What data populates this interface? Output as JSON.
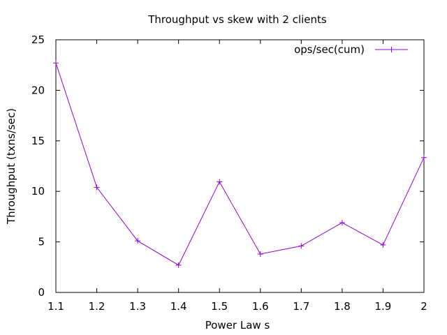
{
  "chart_data": {
    "type": "line",
    "title": "Throughput vs skew with 2 clients",
    "xlabel": "Power Law s",
    "ylabel": "Throughput (txns/sec)",
    "xlim": [
      1.1,
      2
    ],
    "ylim": [
      0,
      25
    ],
    "xticks": [
      "1.1",
      "1.2",
      "1.3",
      "1.4",
      "1.5",
      "1.6",
      "1.7",
      "1.8",
      "1.9",
      "2"
    ],
    "yticks": [
      "0",
      "5",
      "10",
      "15",
      "20",
      "25"
    ],
    "grid": false,
    "legend_position": "top-right",
    "series": [
      {
        "name": "ops/sec(cum)",
        "color": "#9400d3",
        "marker": "plus",
        "x": [
          1.1,
          1.2,
          1.3,
          1.4,
          1.5,
          1.6,
          1.7,
          1.8,
          1.9,
          2.0
        ],
        "y": [
          22.7,
          10.4,
          5.1,
          2.7,
          10.95,
          3.8,
          4.6,
          6.9,
          4.7,
          13.35
        ]
      }
    ]
  }
}
